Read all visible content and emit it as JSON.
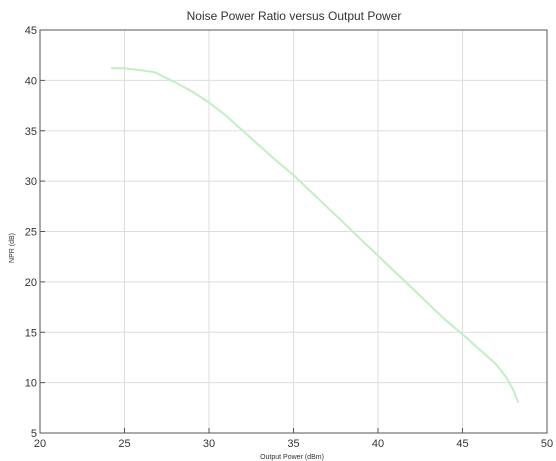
{
  "chart_data": {
    "type": "line",
    "title": "Noise Power Ratio versus Output Power",
    "xlabel": "Output Power (dBm)",
    "ylabel": "NPR (dB)",
    "xlim": [
      20,
      50
    ],
    "ylim": [
      5,
      45
    ],
    "xticks": [
      "20",
      "25",
      "30",
      "35",
      "40",
      "45",
      "50"
    ],
    "yticks": [
      "5",
      "10",
      "15",
      "20",
      "25",
      "30",
      "35",
      "40",
      "45"
    ],
    "grid": true,
    "series": [
      {
        "color": "#bff0bf",
        "x": [
          24.2,
          25.0,
          26.0,
          26.8,
          28.0,
          29.0,
          30.0,
          31.0,
          32.0,
          33.0,
          34.0,
          35.0,
          36.0,
          37.0,
          38.0,
          39.0,
          40.0,
          41.0,
          42.0,
          43.0,
          44.0,
          45.0,
          46.0,
          47.0,
          47.6,
          48.0,
          48.3
        ],
        "y": [
          41.2,
          41.2,
          41.0,
          40.8,
          39.8,
          38.9,
          37.8,
          36.5,
          35.0,
          33.5,
          32.0,
          30.6,
          29.0,
          27.4,
          25.8,
          24.2,
          22.6,
          21.0,
          19.4,
          17.8,
          16.2,
          14.8,
          13.3,
          11.8,
          10.5,
          9.3,
          8.0
        ]
      }
    ]
  }
}
